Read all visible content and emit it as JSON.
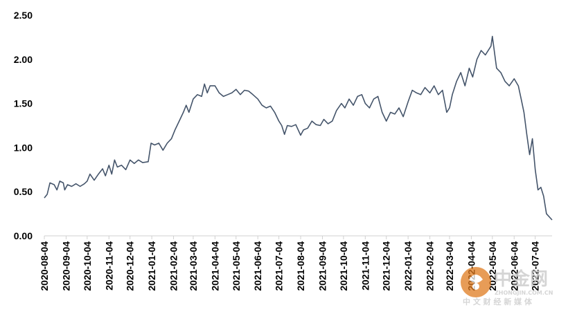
{
  "chart_data": {
    "type": "line",
    "title": "",
    "xlabel": "",
    "ylabel": "",
    "ylim": [
      0,
      2.5
    ],
    "yticks": [
      "0.00",
      "0.50",
      "1.00",
      "1.50",
      "2.00",
      "2.50"
    ],
    "ytick_values": [
      0,
      0.5,
      1.0,
      1.5,
      2.0,
      2.5
    ],
    "xlim": [
      "2020-08-04",
      "2022-07-28"
    ],
    "xticks": [
      "2020-08-04",
      "2020-09-04",
      "2020-10-04",
      "2020-11-04",
      "2020-12-04",
      "2021-01-04",
      "2021-02-04",
      "2021-03-04",
      "2021-04-04",
      "2021-05-04",
      "2021-06-04",
      "2021-07-04",
      "2021-08-04",
      "2021-09-04",
      "2021-10-04",
      "2021-11-04",
      "2021-12-04",
      "2022-01-04",
      "2022-02-04",
      "2022-03-04",
      "2022-04-04",
      "2022-05-04",
      "2022-06-04",
      "2022-07-04"
    ],
    "grid": false,
    "legend": false,
    "series": [
      {
        "color": "#44546a",
        "points": [
          [
            "2020-08-04",
            0.43
          ],
          [
            "2020-08-08",
            0.47
          ],
          [
            "2020-08-12",
            0.6
          ],
          [
            "2020-08-18",
            0.58
          ],
          [
            "2020-08-22",
            0.52
          ],
          [
            "2020-08-26",
            0.62
          ],
          [
            "2020-08-31",
            0.6
          ],
          [
            "2020-09-02",
            0.52
          ],
          [
            "2020-09-06",
            0.58
          ],
          [
            "2020-09-12",
            0.56
          ],
          [
            "2020-09-18",
            0.59
          ],
          [
            "2020-09-24",
            0.56
          ],
          [
            "2020-09-30",
            0.59
          ],
          [
            "2020-10-04",
            0.62
          ],
          [
            "2020-10-08",
            0.7
          ],
          [
            "2020-10-14",
            0.63
          ],
          [
            "2020-10-20",
            0.7
          ],
          [
            "2020-10-26",
            0.76
          ],
          [
            "2020-10-30",
            0.68
          ],
          [
            "2020-11-04",
            0.8
          ],
          [
            "2020-11-08",
            0.7
          ],
          [
            "2020-11-12",
            0.86
          ],
          [
            "2020-11-16",
            0.78
          ],
          [
            "2020-11-22",
            0.8
          ],
          [
            "2020-11-28",
            0.75
          ],
          [
            "2020-12-04",
            0.86
          ],
          [
            "2020-12-10",
            0.82
          ],
          [
            "2020-12-16",
            0.86
          ],
          [
            "2020-12-22",
            0.83
          ],
          [
            "2020-12-30",
            0.84
          ],
          [
            "2021-01-03",
            1.05
          ],
          [
            "2021-01-08",
            1.03
          ],
          [
            "2021-01-14",
            1.05
          ],
          [
            "2021-01-20",
            0.97
          ],
          [
            "2021-01-26",
            1.05
          ],
          [
            "2021-02-01",
            1.1
          ],
          [
            "2021-02-06",
            1.2
          ],
          [
            "2021-02-12",
            1.3
          ],
          [
            "2021-02-18",
            1.4
          ],
          [
            "2021-02-22",
            1.48
          ],
          [
            "2021-02-26",
            1.4
          ],
          [
            "2021-03-04",
            1.55
          ],
          [
            "2021-03-10",
            1.6
          ],
          [
            "2021-03-16",
            1.58
          ],
          [
            "2021-03-20",
            1.72
          ],
          [
            "2021-03-24",
            1.62
          ],
          [
            "2021-03-28",
            1.7
          ],
          [
            "2021-04-04",
            1.7
          ],
          [
            "2021-04-10",
            1.62
          ],
          [
            "2021-04-16",
            1.58
          ],
          [
            "2021-04-22",
            1.6
          ],
          [
            "2021-04-28",
            1.62
          ],
          [
            "2021-05-04",
            1.66
          ],
          [
            "2021-05-10",
            1.6
          ],
          [
            "2021-05-16",
            1.65
          ],
          [
            "2021-05-22",
            1.64
          ],
          [
            "2021-05-28",
            1.6
          ],
          [
            "2021-06-04",
            1.55
          ],
          [
            "2021-06-10",
            1.48
          ],
          [
            "2021-06-16",
            1.45
          ],
          [
            "2021-06-22",
            1.47
          ],
          [
            "2021-06-28",
            1.4
          ],
          [
            "2021-07-04",
            1.3
          ],
          [
            "2021-07-08",
            1.25
          ],
          [
            "2021-07-12",
            1.15
          ],
          [
            "2021-07-16",
            1.25
          ],
          [
            "2021-07-22",
            1.24
          ],
          [
            "2021-07-28",
            1.26
          ],
          [
            "2021-08-04",
            1.14
          ],
          [
            "2021-08-08",
            1.2
          ],
          [
            "2021-08-14",
            1.22
          ],
          [
            "2021-08-20",
            1.3
          ],
          [
            "2021-08-26",
            1.26
          ],
          [
            "2021-09-01",
            1.25
          ],
          [
            "2021-09-06",
            1.32
          ],
          [
            "2021-09-12",
            1.27
          ],
          [
            "2021-09-18",
            1.3
          ],
          [
            "2021-09-24",
            1.42
          ],
          [
            "2021-10-01",
            1.5
          ],
          [
            "2021-10-06",
            1.45
          ],
          [
            "2021-10-12",
            1.55
          ],
          [
            "2021-10-18",
            1.48
          ],
          [
            "2021-10-24",
            1.58
          ],
          [
            "2021-10-30",
            1.6
          ],
          [
            "2021-11-04",
            1.5
          ],
          [
            "2021-11-10",
            1.45
          ],
          [
            "2021-11-16",
            1.55
          ],
          [
            "2021-11-22",
            1.58
          ],
          [
            "2021-11-28",
            1.4
          ],
          [
            "2021-12-04",
            1.3
          ],
          [
            "2021-12-10",
            1.4
          ],
          [
            "2021-12-16",
            1.38
          ],
          [
            "2021-12-22",
            1.45
          ],
          [
            "2021-12-28",
            1.35
          ],
          [
            "2022-01-04",
            1.52
          ],
          [
            "2022-01-10",
            1.65
          ],
          [
            "2022-01-16",
            1.62
          ],
          [
            "2022-01-22",
            1.6
          ],
          [
            "2022-01-28",
            1.68
          ],
          [
            "2022-02-04",
            1.62
          ],
          [
            "2022-02-10",
            1.7
          ],
          [
            "2022-02-16",
            1.6
          ],
          [
            "2022-02-22",
            1.65
          ],
          [
            "2022-02-28",
            1.4
          ],
          [
            "2022-03-04",
            1.45
          ],
          [
            "2022-03-08",
            1.6
          ],
          [
            "2022-03-14",
            1.75
          ],
          [
            "2022-03-20",
            1.85
          ],
          [
            "2022-03-26",
            1.7
          ],
          [
            "2022-04-01",
            1.9
          ],
          [
            "2022-04-06",
            1.8
          ],
          [
            "2022-04-12",
            2.0
          ],
          [
            "2022-04-18",
            2.1
          ],
          [
            "2022-04-24",
            2.05
          ],
          [
            "2022-05-02",
            2.15
          ],
          [
            "2022-05-04",
            2.26
          ],
          [
            "2022-05-10",
            1.9
          ],
          [
            "2022-05-16",
            1.85
          ],
          [
            "2022-05-22",
            1.75
          ],
          [
            "2022-05-28",
            1.7
          ],
          [
            "2022-06-04",
            1.78
          ],
          [
            "2022-06-10",
            1.7
          ],
          [
            "2022-06-14",
            1.55
          ],
          [
            "2022-06-18",
            1.4
          ],
          [
            "2022-06-22",
            1.15
          ],
          [
            "2022-06-26",
            0.92
          ],
          [
            "2022-06-30",
            1.1
          ],
          [
            "2022-07-04",
            0.75
          ],
          [
            "2022-07-08",
            0.52
          ],
          [
            "2022-07-12",
            0.55
          ],
          [
            "2022-07-16",
            0.45
          ],
          [
            "2022-07-20",
            0.25
          ],
          [
            "2022-07-28",
            0.18
          ]
        ]
      }
    ]
  },
  "watermark": {
    "text": "中金网",
    "subtext": "ZHONGJIN.COM.CN",
    "tagline": "中 文 财 经 新 媒 体",
    "color": "#c8c8c8",
    "logo_color": "#e07b20"
  }
}
